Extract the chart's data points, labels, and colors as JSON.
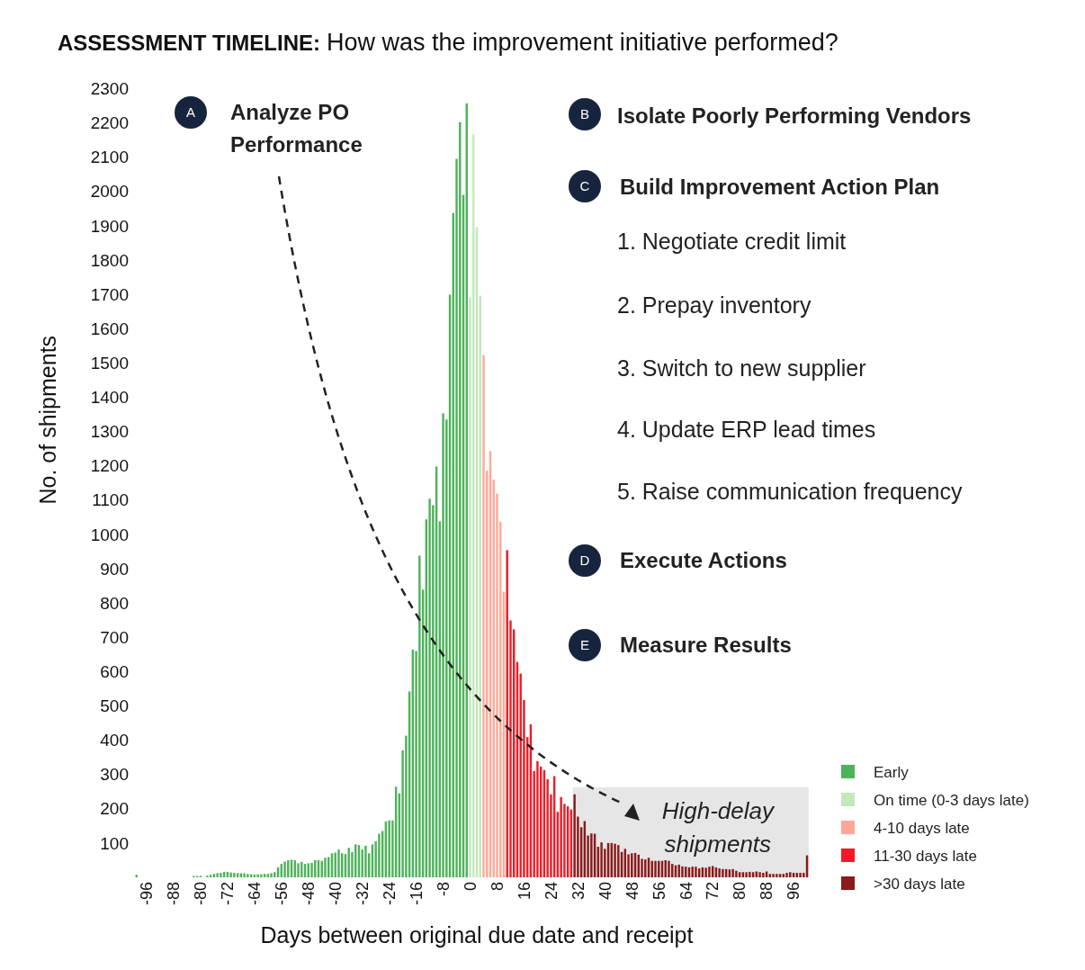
{
  "chart_data": {
    "type": "bar",
    "title": "ASSESSMENT TIMELINE:",
    "subtitle": "How was the improvement initiative performed?",
    "xlabel": "Days between original due date and receipt",
    "ylabel": "No. of shipments",
    "xlim": [
      -99.5,
      100.5
    ],
    "xticks": [
      -96,
      -88,
      -80,
      -72,
      -64,
      -56,
      -48,
      -40,
      -32,
      -24,
      -16,
      -8,
      0,
      8,
      16,
      24,
      32,
      40,
      48,
      56,
      64,
      72,
      80,
      88,
      96
    ],
    "ylim": [
      0,
      2300
    ],
    "yticks": [
      100,
      200,
      300,
      400,
      500,
      600,
      700,
      800,
      900,
      1000,
      1100,
      1200,
      1300,
      1400,
      1500,
      1600,
      1700,
      1800,
      1900,
      2000,
      2100,
      2200,
      2300
    ],
    "legend": "bottom right",
    "series": [
      {
        "name": "Early",
        "color": "#4db35a",
        "x": [
          -99,
          -98,
          -97,
          -96,
          -95,
          -94,
          -93,
          -92,
          -91,
          -90,
          -89,
          -88,
          -87,
          -86,
          -85,
          -84,
          -83,
          -82,
          -81,
          -80,
          -79,
          -78,
          -77,
          -76,
          -75,
          -74,
          -73,
          -72,
          -71,
          -70,
          -69,
          -68,
          -67,
          -66,
          -65,
          -64,
          -63,
          -62,
          -61,
          -60,
          -59,
          -58,
          -57,
          -56,
          -55,
          -54,
          -53,
          -52,
          -51,
          -50,
          -49,
          -48,
          -47,
          -46,
          -45,
          -44,
          -43,
          -42,
          -41,
          -40,
          -39,
          -38,
          -37,
          -36,
          -35,
          -34,
          -33,
          -32,
          -31,
          -30,
          -29,
          -28,
          -27,
          -26,
          -25,
          -24,
          -23,
          -22,
          -21,
          -20,
          -19,
          -18,
          -17,
          -16,
          -15,
          -14,
          -13,
          -12,
          -11,
          -10,
          -9,
          -8,
          -7,
          -6,
          -5,
          -4,
          -3,
          -2,
          -1
        ],
        "values": [
          7,
          0,
          0,
          0,
          0,
          0,
          0,
          0,
          0,
          0,
          0,
          0,
          0,
          0,
          0,
          0,
          0,
          4,
          4,
          4,
          0,
          5,
          7,
          10,
          12,
          13,
          16,
          16,
          14,
          13,
          12,
          12,
          12,
          10,
          9,
          8,
          9,
          9,
          10,
          10,
          12,
          15,
          29,
          39,
          46,
          50,
          51,
          50,
          41,
          45,
          39,
          41,
          42,
          50,
          50,
          48,
          57,
          59,
          70,
          72,
          81,
          70,
          68,
          86,
          74,
          96,
          94,
          81,
          92,
          70,
          96,
          105,
          127,
          135,
          163,
          166,
          166,
          264,
          245,
          370,
          413,
          542,
          664,
          660,
          938,
          839,
          1044,
          1104,
          1085,
          1198,
          1038,
          1353,
          1335,
          1699,
          1937,
          2095,
          2202,
          1990,
          2257
        ]
      },
      {
        "name": "On time (0-3 days late)",
        "color": "#c2e8bc",
        "x": [
          0,
          1,
          2,
          3
        ],
        "values": [
          1691,
          2166,
          1896,
          1696
        ]
      },
      {
        "name": "4-10 days late",
        "color": "#ffa898",
        "x": [
          4,
          5,
          6,
          7,
          8,
          9,
          10
        ],
        "values": [
          1523,
          1186,
          1243,
          1160,
          1119,
          1037,
          833
        ]
      },
      {
        "name": "11-30 days late",
        "color": "#ee1c25",
        "x": [
          11,
          12,
          13,
          14,
          15,
          16,
          17,
          18,
          19,
          20,
          21,
          22,
          23,
          24,
          25,
          26,
          27,
          28,
          29,
          30
        ],
        "values": [
          954,
          749,
          723,
          628,
          594,
          517,
          409,
          446,
          310,
          339,
          323,
          313,
          286,
          242,
          295,
          191,
          234,
          214,
          207,
          198
        ]
      },
      {
        "name": ">30 days late",
        "color": "#8b1a1a",
        "x": [
          31,
          32,
          33,
          34,
          35,
          36,
          37,
          38,
          39,
          40,
          41,
          42,
          43,
          44,
          45,
          46,
          47,
          48,
          49,
          50,
          51,
          52,
          53,
          54,
          55,
          56,
          57,
          58,
          59,
          60,
          61,
          62,
          63,
          64,
          65,
          66,
          67,
          68,
          69,
          70,
          71,
          72,
          73,
          74,
          75,
          76,
          77,
          78,
          79,
          80,
          81,
          82,
          83,
          84,
          85,
          86,
          87,
          88,
          89,
          90,
          91,
          92,
          93,
          94,
          95,
          96,
          97,
          98,
          99,
          100
        ],
        "values": [
          242,
          177,
          146,
          164,
          122,
          128,
          127,
          89,
          102,
          83,
          100,
          100,
          98,
          94,
          74,
          83,
          67,
          70,
          71,
          66,
          54,
          52,
          57,
          48,
          48,
          48,
          48,
          50,
          48,
          39,
          35,
          37,
          32,
          31,
          29,
          31,
          31,
          26,
          29,
          28,
          31,
          33,
          29,
          26,
          24,
          24,
          23,
          24,
          19,
          15,
          15,
          15,
          16,
          15,
          17,
          15,
          13,
          17,
          10,
          10,
          10,
          10,
          10,
          13,
          15,
          13,
          13,
          13,
          13,
          64
        ]
      }
    ],
    "bands": [
      {
        "axis": "x",
        "from": 30.5,
        "to": 100.5,
        "label": "High-delay shipments",
        "color": "#e6e6e6"
      }
    ],
    "annotations": [
      "A",
      "Analyze PO Performance",
      "B",
      "Isolate Poorly Performing Vendors",
      "C",
      "Build Improvement Action Plan",
      "1. Negotiate credit limit",
      "2. Prepay inventory",
      "3. Switch to new supplier",
      "4. Update ERP lead times",
      "5. Raise communication frequency",
      "D",
      "Execute Actions",
      "E",
      "Measure Results"
    ]
  }
}
